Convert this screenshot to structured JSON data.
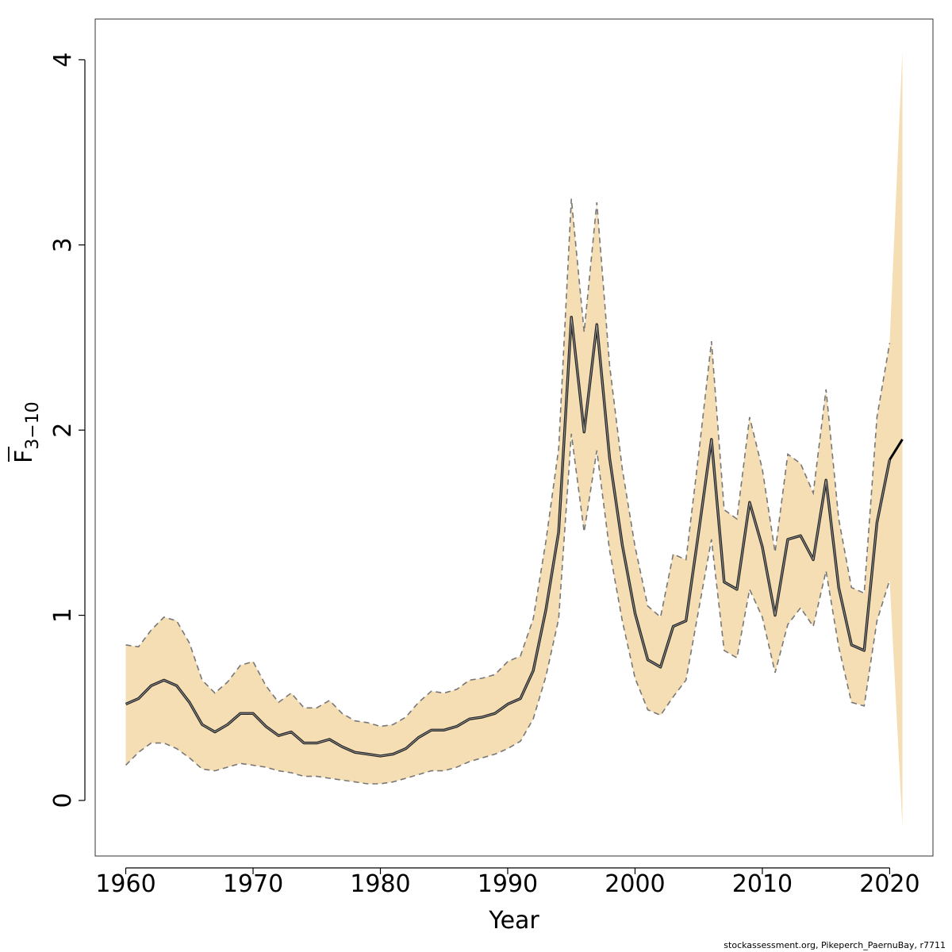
{
  "chart_data": {
    "type": "line",
    "xlabel": "Year",
    "ylabel": "F",
    "ylabel_subscript": "3−10",
    "xlim": [
      1957.6,
      2023.4
    ],
    "ylim": [
      -0.3,
      4.22
    ],
    "x_ticks": [
      1960,
      1970,
      1980,
      1990,
      2000,
      2010,
      2020
    ],
    "y_ticks": [
      0,
      1,
      2,
      3,
      4
    ],
    "band_color": "#f5deb3",
    "line_color": "#000000",
    "bound_color": "#777777",
    "grid": false,
    "legend": "none",
    "x": [
      1960,
      1961,
      1962,
      1963,
      1964,
      1965,
      1966,
      1967,
      1968,
      1969,
      1970,
      1971,
      1972,
      1973,
      1974,
      1975,
      1976,
      1977,
      1978,
      1979,
      1980,
      1981,
      1982,
      1983,
      1984,
      1985,
      1986,
      1987,
      1988,
      1989,
      1990,
      1991,
      1992,
      1993,
      1994,
      1995,
      1996,
      1997,
      1998,
      1999,
      2000,
      2001,
      2002,
      2003,
      2004,
      2005,
      2006,
      2007,
      2008,
      2009,
      2010,
      2011,
      2012,
      2013,
      2014,
      2015,
      2016,
      2017,
      2018,
      2019,
      2020,
      2021
    ],
    "series": [
      {
        "role": "estimate",
        "values": [
          0.52,
          0.55,
          0.62,
          0.65,
          0.62,
          0.53,
          0.41,
          0.37,
          0.41,
          0.47,
          0.47,
          0.4,
          0.35,
          0.37,
          0.31,
          0.31,
          0.33,
          0.29,
          0.26,
          0.25,
          0.24,
          0.25,
          0.28,
          0.34,
          0.38,
          0.38,
          0.4,
          0.44,
          0.45,
          0.47,
          0.52,
          0.55,
          0.7,
          1.03,
          1.45,
          2.61,
          1.99,
          2.57,
          1.85,
          1.38,
          1.01,
          0.76,
          0.72,
          0.94,
          0.97,
          1.45,
          1.95,
          1.18,
          1.14,
          1.61,
          1.37,
          1.0,
          1.41,
          1.43,
          1.3,
          1.73,
          1.15,
          0.84,
          0.81,
          1.5,
          1.84,
          1.95
        ]
      },
      {
        "role": "upper",
        "values": [
          0.84,
          0.83,
          0.92,
          0.99,
          0.97,
          0.85,
          0.65,
          0.58,
          0.64,
          0.73,
          0.75,
          0.62,
          0.53,
          0.58,
          0.5,
          0.5,
          0.54,
          0.47,
          0.43,
          0.42,
          0.4,
          0.41,
          0.45,
          0.53,
          0.59,
          0.58,
          0.6,
          0.65,
          0.66,
          0.68,
          0.75,
          0.78,
          0.98,
          1.4,
          1.9,
          3.25,
          2.53,
          3.23,
          2.35,
          1.79,
          1.37,
          1.05,
          0.99,
          1.33,
          1.3,
          1.87,
          2.48,
          1.57,
          1.52,
          2.07,
          1.79,
          1.34,
          1.87,
          1.82,
          1.66,
          2.22,
          1.52,
          1.15,
          1.12,
          2.07,
          2.47,
          4.05
        ]
      },
      {
        "role": "lower",
        "values": [
          0.19,
          0.26,
          0.31,
          0.31,
          0.28,
          0.23,
          0.17,
          0.16,
          0.18,
          0.2,
          0.19,
          0.18,
          0.16,
          0.15,
          0.13,
          0.13,
          0.12,
          0.11,
          0.1,
          0.09,
          0.09,
          0.1,
          0.12,
          0.14,
          0.16,
          0.16,
          0.18,
          0.21,
          0.23,
          0.25,
          0.28,
          0.32,
          0.44,
          0.67,
          0.98,
          1.98,
          1.45,
          1.89,
          1.35,
          0.97,
          0.66,
          0.49,
          0.46,
          0.56,
          0.65,
          1.03,
          1.41,
          0.81,
          0.77,
          1.14,
          0.99,
          0.69,
          0.95,
          1.04,
          0.94,
          1.24,
          0.83,
          0.53,
          0.51,
          0.97,
          1.19,
          -0.14
        ]
      }
    ]
  },
  "credit": "stockassessment.org, Pikeperch_PaernuBay, r7711"
}
